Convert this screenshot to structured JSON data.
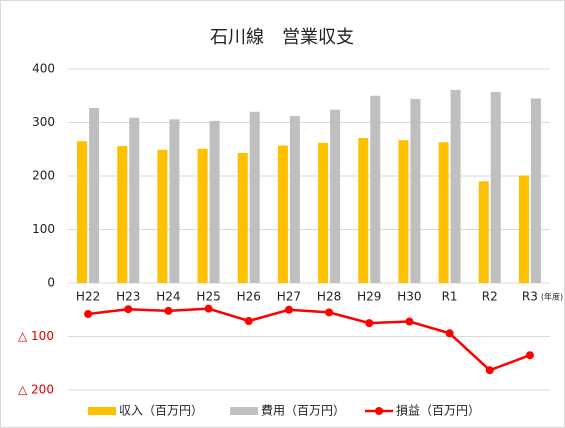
{
  "chart_data": {
    "type": "bar",
    "title": "石川線　営業収支",
    "annotation": "(年度)",
    "categories": [
      "H22",
      "H23",
      "H24",
      "H25",
      "H26",
      "H27",
      "H28",
      "H29",
      "H30",
      "R1",
      "R2",
      "R3"
    ],
    "series": [
      {
        "name": "収入（百万円）",
        "type": "bar",
        "color": "#ffc000",
        "values": [
          265,
          256,
          249,
          251,
          243,
          257,
          262,
          271,
          267,
          263,
          190,
          201
        ]
      },
      {
        "name": "費用（百万円）",
        "type": "bar",
        "color": "#bfbfbf",
        "values": [
          327,
          309,
          306,
          303,
          320,
          312,
          324,
          350,
          344,
          361,
          357,
          345
        ]
      },
      {
        "name": "損益（百万円）",
        "type": "line",
        "color": "#ff0000",
        "values": [
          -58,
          -49,
          -52,
          -48,
          -71,
          -50,
          -55,
          -75,
          -72,
          -94,
          -163,
          -135
        ]
      }
    ],
    "ylim": [
      -220,
      400
    ],
    "yticks": [
      400,
      300,
      200,
      100,
      0,
      {
        "value": -100,
        "label": "△ 100"
      },
      {
        "value": -200,
        "label": "△ 200"
      }
    ],
    "grid": true,
    "legend": "bottom"
  }
}
